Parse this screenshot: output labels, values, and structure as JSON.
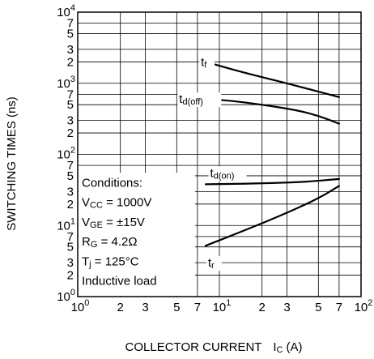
{
  "chart_data": {
    "type": "line",
    "xscale": "log",
    "yscale": "log",
    "xlim": [
      1,
      100
    ],
    "ylim": [
      1,
      10000
    ],
    "xlabel": "COLLECTOR CURRENT",
    "xlabel_symbol": "I",
    "xlabel_symbol_sub": "C",
    "xlabel_unit": "(A)",
    "ylabel": "SWITCHING TIMES (ns)",
    "grid": true,
    "x_ticks": [
      {
        "value": 1,
        "base": "10",
        "exp": "0"
      },
      {
        "value": 2,
        "label": "2"
      },
      {
        "value": 3,
        "label": "3"
      },
      {
        "value": 5,
        "label": "5"
      },
      {
        "value": 7,
        "label": "7"
      },
      {
        "value": 10,
        "base": "10",
        "exp": "1"
      },
      {
        "value": 20,
        "label": "2"
      },
      {
        "value": 30,
        "label": "3"
      },
      {
        "value": 50,
        "label": "5"
      },
      {
        "value": 70,
        "label": "7"
      },
      {
        "value": 100,
        "base": "10",
        "exp": "2"
      }
    ],
    "y_ticks": [
      {
        "value": 1,
        "base": "10",
        "exp": "0"
      },
      {
        "value": 2,
        "label": "2"
      },
      {
        "value": 3,
        "label": "3"
      },
      {
        "value": 5,
        "label": "5"
      },
      {
        "value": 7,
        "label": "7"
      },
      {
        "value": 10,
        "base": "10",
        "exp": "1"
      },
      {
        "value": 20,
        "label": "2"
      },
      {
        "value": 30,
        "label": "3"
      },
      {
        "value": 50,
        "label": "5"
      },
      {
        "value": 70,
        "label": "7"
      },
      {
        "value": 100,
        "base": "10",
        "exp": "2"
      },
      {
        "value": 200,
        "label": "2"
      },
      {
        "value": 300,
        "label": "3"
      },
      {
        "value": 500,
        "label": "5"
      },
      {
        "value": 700,
        "label": "7"
      },
      {
        "value": 1000,
        "base": "10",
        "exp": "3"
      },
      {
        "value": 2000,
        "label": "2"
      },
      {
        "value": 3000,
        "label": "3"
      },
      {
        "value": 5000,
        "label": "5"
      },
      {
        "value": 7000,
        "label": "7"
      },
      {
        "value": 10000,
        "base": "10",
        "exp": "4"
      }
    ],
    "series": [
      {
        "name": "tf",
        "label_main": "t",
        "label_sub": "f",
        "points": [
          [
            8,
            2000
          ],
          [
            15,
            1400
          ],
          [
            30,
            1000
          ],
          [
            70,
            640
          ]
        ]
      },
      {
        "name": "td(off)",
        "label_main": "t",
        "label_sub": "d(off)",
        "points": [
          [
            8,
            600
          ],
          [
            12,
            570
          ],
          [
            20,
            500
          ],
          [
            35,
            420
          ],
          [
            50,
            350
          ],
          [
            70,
            270
          ]
        ]
      },
      {
        "name": "td(on)",
        "label_main": "t",
        "label_sub": "d(on)",
        "points": [
          [
            8,
            38
          ],
          [
            20,
            39
          ],
          [
            40,
            41
          ],
          [
            70,
            45
          ]
        ]
      },
      {
        "name": "tr",
        "label_main": "t",
        "label_sub": "r",
        "points": [
          [
            8,
            5.2
          ],
          [
            15,
            8.5
          ],
          [
            30,
            15
          ],
          [
            50,
            24
          ],
          [
            70,
            36
          ]
        ]
      }
    ],
    "conditions": [
      {
        "main": "Conditions:",
        "sub": "",
        "rest": ""
      },
      {
        "main": "V",
        "sub": "CC",
        "rest": " = 1000V"
      },
      {
        "main": "V",
        "sub": "GE",
        "rest": " = ±15V"
      },
      {
        "main": "R",
        "sub": "G",
        "rest": " = 4.2Ω"
      },
      {
        "main": "T",
        "sub": "j",
        "rest": " = 125°C"
      },
      {
        "main": "Inductive load",
        "sub": "",
        "rest": ""
      }
    ]
  }
}
